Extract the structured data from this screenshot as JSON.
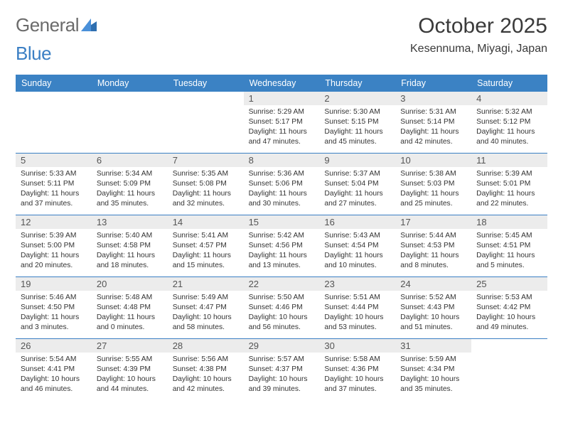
{
  "logo": {
    "text_a": "General",
    "text_b": "Blue"
  },
  "title": "October 2025",
  "location": "Kesennuma, Miyagi, Japan",
  "colors": {
    "header_bg": "#3b82c4",
    "header_text": "#ffffff",
    "rule": "#3b7fc4",
    "daynum_bg": "#ececec",
    "daynum_text": "#555555",
    "body_text": "#333333",
    "title_text": "#3a3a3a"
  },
  "weekdays": [
    "Sunday",
    "Monday",
    "Tuesday",
    "Wednesday",
    "Thursday",
    "Friday",
    "Saturday"
  ],
  "weeks": [
    [
      {
        "day": "",
        "sunrise": "",
        "sunset": "",
        "daylight": ""
      },
      {
        "day": "",
        "sunrise": "",
        "sunset": "",
        "daylight": ""
      },
      {
        "day": "",
        "sunrise": "",
        "sunset": "",
        "daylight": ""
      },
      {
        "day": "1",
        "sunrise": "Sunrise: 5:29 AM",
        "sunset": "Sunset: 5:17 PM",
        "daylight": "Daylight: 11 hours and 47 minutes."
      },
      {
        "day": "2",
        "sunrise": "Sunrise: 5:30 AM",
        "sunset": "Sunset: 5:15 PM",
        "daylight": "Daylight: 11 hours and 45 minutes."
      },
      {
        "day": "3",
        "sunrise": "Sunrise: 5:31 AM",
        "sunset": "Sunset: 5:14 PM",
        "daylight": "Daylight: 11 hours and 42 minutes."
      },
      {
        "day": "4",
        "sunrise": "Sunrise: 5:32 AM",
        "sunset": "Sunset: 5:12 PM",
        "daylight": "Daylight: 11 hours and 40 minutes."
      }
    ],
    [
      {
        "day": "5",
        "sunrise": "Sunrise: 5:33 AM",
        "sunset": "Sunset: 5:11 PM",
        "daylight": "Daylight: 11 hours and 37 minutes."
      },
      {
        "day": "6",
        "sunrise": "Sunrise: 5:34 AM",
        "sunset": "Sunset: 5:09 PM",
        "daylight": "Daylight: 11 hours and 35 minutes."
      },
      {
        "day": "7",
        "sunrise": "Sunrise: 5:35 AM",
        "sunset": "Sunset: 5:08 PM",
        "daylight": "Daylight: 11 hours and 32 minutes."
      },
      {
        "day": "8",
        "sunrise": "Sunrise: 5:36 AM",
        "sunset": "Sunset: 5:06 PM",
        "daylight": "Daylight: 11 hours and 30 minutes."
      },
      {
        "day": "9",
        "sunrise": "Sunrise: 5:37 AM",
        "sunset": "Sunset: 5:04 PM",
        "daylight": "Daylight: 11 hours and 27 minutes."
      },
      {
        "day": "10",
        "sunrise": "Sunrise: 5:38 AM",
        "sunset": "Sunset: 5:03 PM",
        "daylight": "Daylight: 11 hours and 25 minutes."
      },
      {
        "day": "11",
        "sunrise": "Sunrise: 5:39 AM",
        "sunset": "Sunset: 5:01 PM",
        "daylight": "Daylight: 11 hours and 22 minutes."
      }
    ],
    [
      {
        "day": "12",
        "sunrise": "Sunrise: 5:39 AM",
        "sunset": "Sunset: 5:00 PM",
        "daylight": "Daylight: 11 hours and 20 minutes."
      },
      {
        "day": "13",
        "sunrise": "Sunrise: 5:40 AM",
        "sunset": "Sunset: 4:58 PM",
        "daylight": "Daylight: 11 hours and 18 minutes."
      },
      {
        "day": "14",
        "sunrise": "Sunrise: 5:41 AM",
        "sunset": "Sunset: 4:57 PM",
        "daylight": "Daylight: 11 hours and 15 minutes."
      },
      {
        "day": "15",
        "sunrise": "Sunrise: 5:42 AM",
        "sunset": "Sunset: 4:56 PM",
        "daylight": "Daylight: 11 hours and 13 minutes."
      },
      {
        "day": "16",
        "sunrise": "Sunrise: 5:43 AM",
        "sunset": "Sunset: 4:54 PM",
        "daylight": "Daylight: 11 hours and 10 minutes."
      },
      {
        "day": "17",
        "sunrise": "Sunrise: 5:44 AM",
        "sunset": "Sunset: 4:53 PM",
        "daylight": "Daylight: 11 hours and 8 minutes."
      },
      {
        "day": "18",
        "sunrise": "Sunrise: 5:45 AM",
        "sunset": "Sunset: 4:51 PM",
        "daylight": "Daylight: 11 hours and 5 minutes."
      }
    ],
    [
      {
        "day": "19",
        "sunrise": "Sunrise: 5:46 AM",
        "sunset": "Sunset: 4:50 PM",
        "daylight": "Daylight: 11 hours and 3 minutes."
      },
      {
        "day": "20",
        "sunrise": "Sunrise: 5:48 AM",
        "sunset": "Sunset: 4:48 PM",
        "daylight": "Daylight: 11 hours and 0 minutes."
      },
      {
        "day": "21",
        "sunrise": "Sunrise: 5:49 AM",
        "sunset": "Sunset: 4:47 PM",
        "daylight": "Daylight: 10 hours and 58 minutes."
      },
      {
        "day": "22",
        "sunrise": "Sunrise: 5:50 AM",
        "sunset": "Sunset: 4:46 PM",
        "daylight": "Daylight: 10 hours and 56 minutes."
      },
      {
        "day": "23",
        "sunrise": "Sunrise: 5:51 AM",
        "sunset": "Sunset: 4:44 PM",
        "daylight": "Daylight: 10 hours and 53 minutes."
      },
      {
        "day": "24",
        "sunrise": "Sunrise: 5:52 AM",
        "sunset": "Sunset: 4:43 PM",
        "daylight": "Daylight: 10 hours and 51 minutes."
      },
      {
        "day": "25",
        "sunrise": "Sunrise: 5:53 AM",
        "sunset": "Sunset: 4:42 PM",
        "daylight": "Daylight: 10 hours and 49 minutes."
      }
    ],
    [
      {
        "day": "26",
        "sunrise": "Sunrise: 5:54 AM",
        "sunset": "Sunset: 4:41 PM",
        "daylight": "Daylight: 10 hours and 46 minutes."
      },
      {
        "day": "27",
        "sunrise": "Sunrise: 5:55 AM",
        "sunset": "Sunset: 4:39 PM",
        "daylight": "Daylight: 10 hours and 44 minutes."
      },
      {
        "day": "28",
        "sunrise": "Sunrise: 5:56 AM",
        "sunset": "Sunset: 4:38 PM",
        "daylight": "Daylight: 10 hours and 42 minutes."
      },
      {
        "day": "29",
        "sunrise": "Sunrise: 5:57 AM",
        "sunset": "Sunset: 4:37 PM",
        "daylight": "Daylight: 10 hours and 39 minutes."
      },
      {
        "day": "30",
        "sunrise": "Sunrise: 5:58 AM",
        "sunset": "Sunset: 4:36 PM",
        "daylight": "Daylight: 10 hours and 37 minutes."
      },
      {
        "day": "31",
        "sunrise": "Sunrise: 5:59 AM",
        "sunset": "Sunset: 4:34 PM",
        "daylight": "Daylight: 10 hours and 35 minutes."
      },
      {
        "day": "",
        "sunrise": "",
        "sunset": "",
        "daylight": ""
      }
    ]
  ]
}
